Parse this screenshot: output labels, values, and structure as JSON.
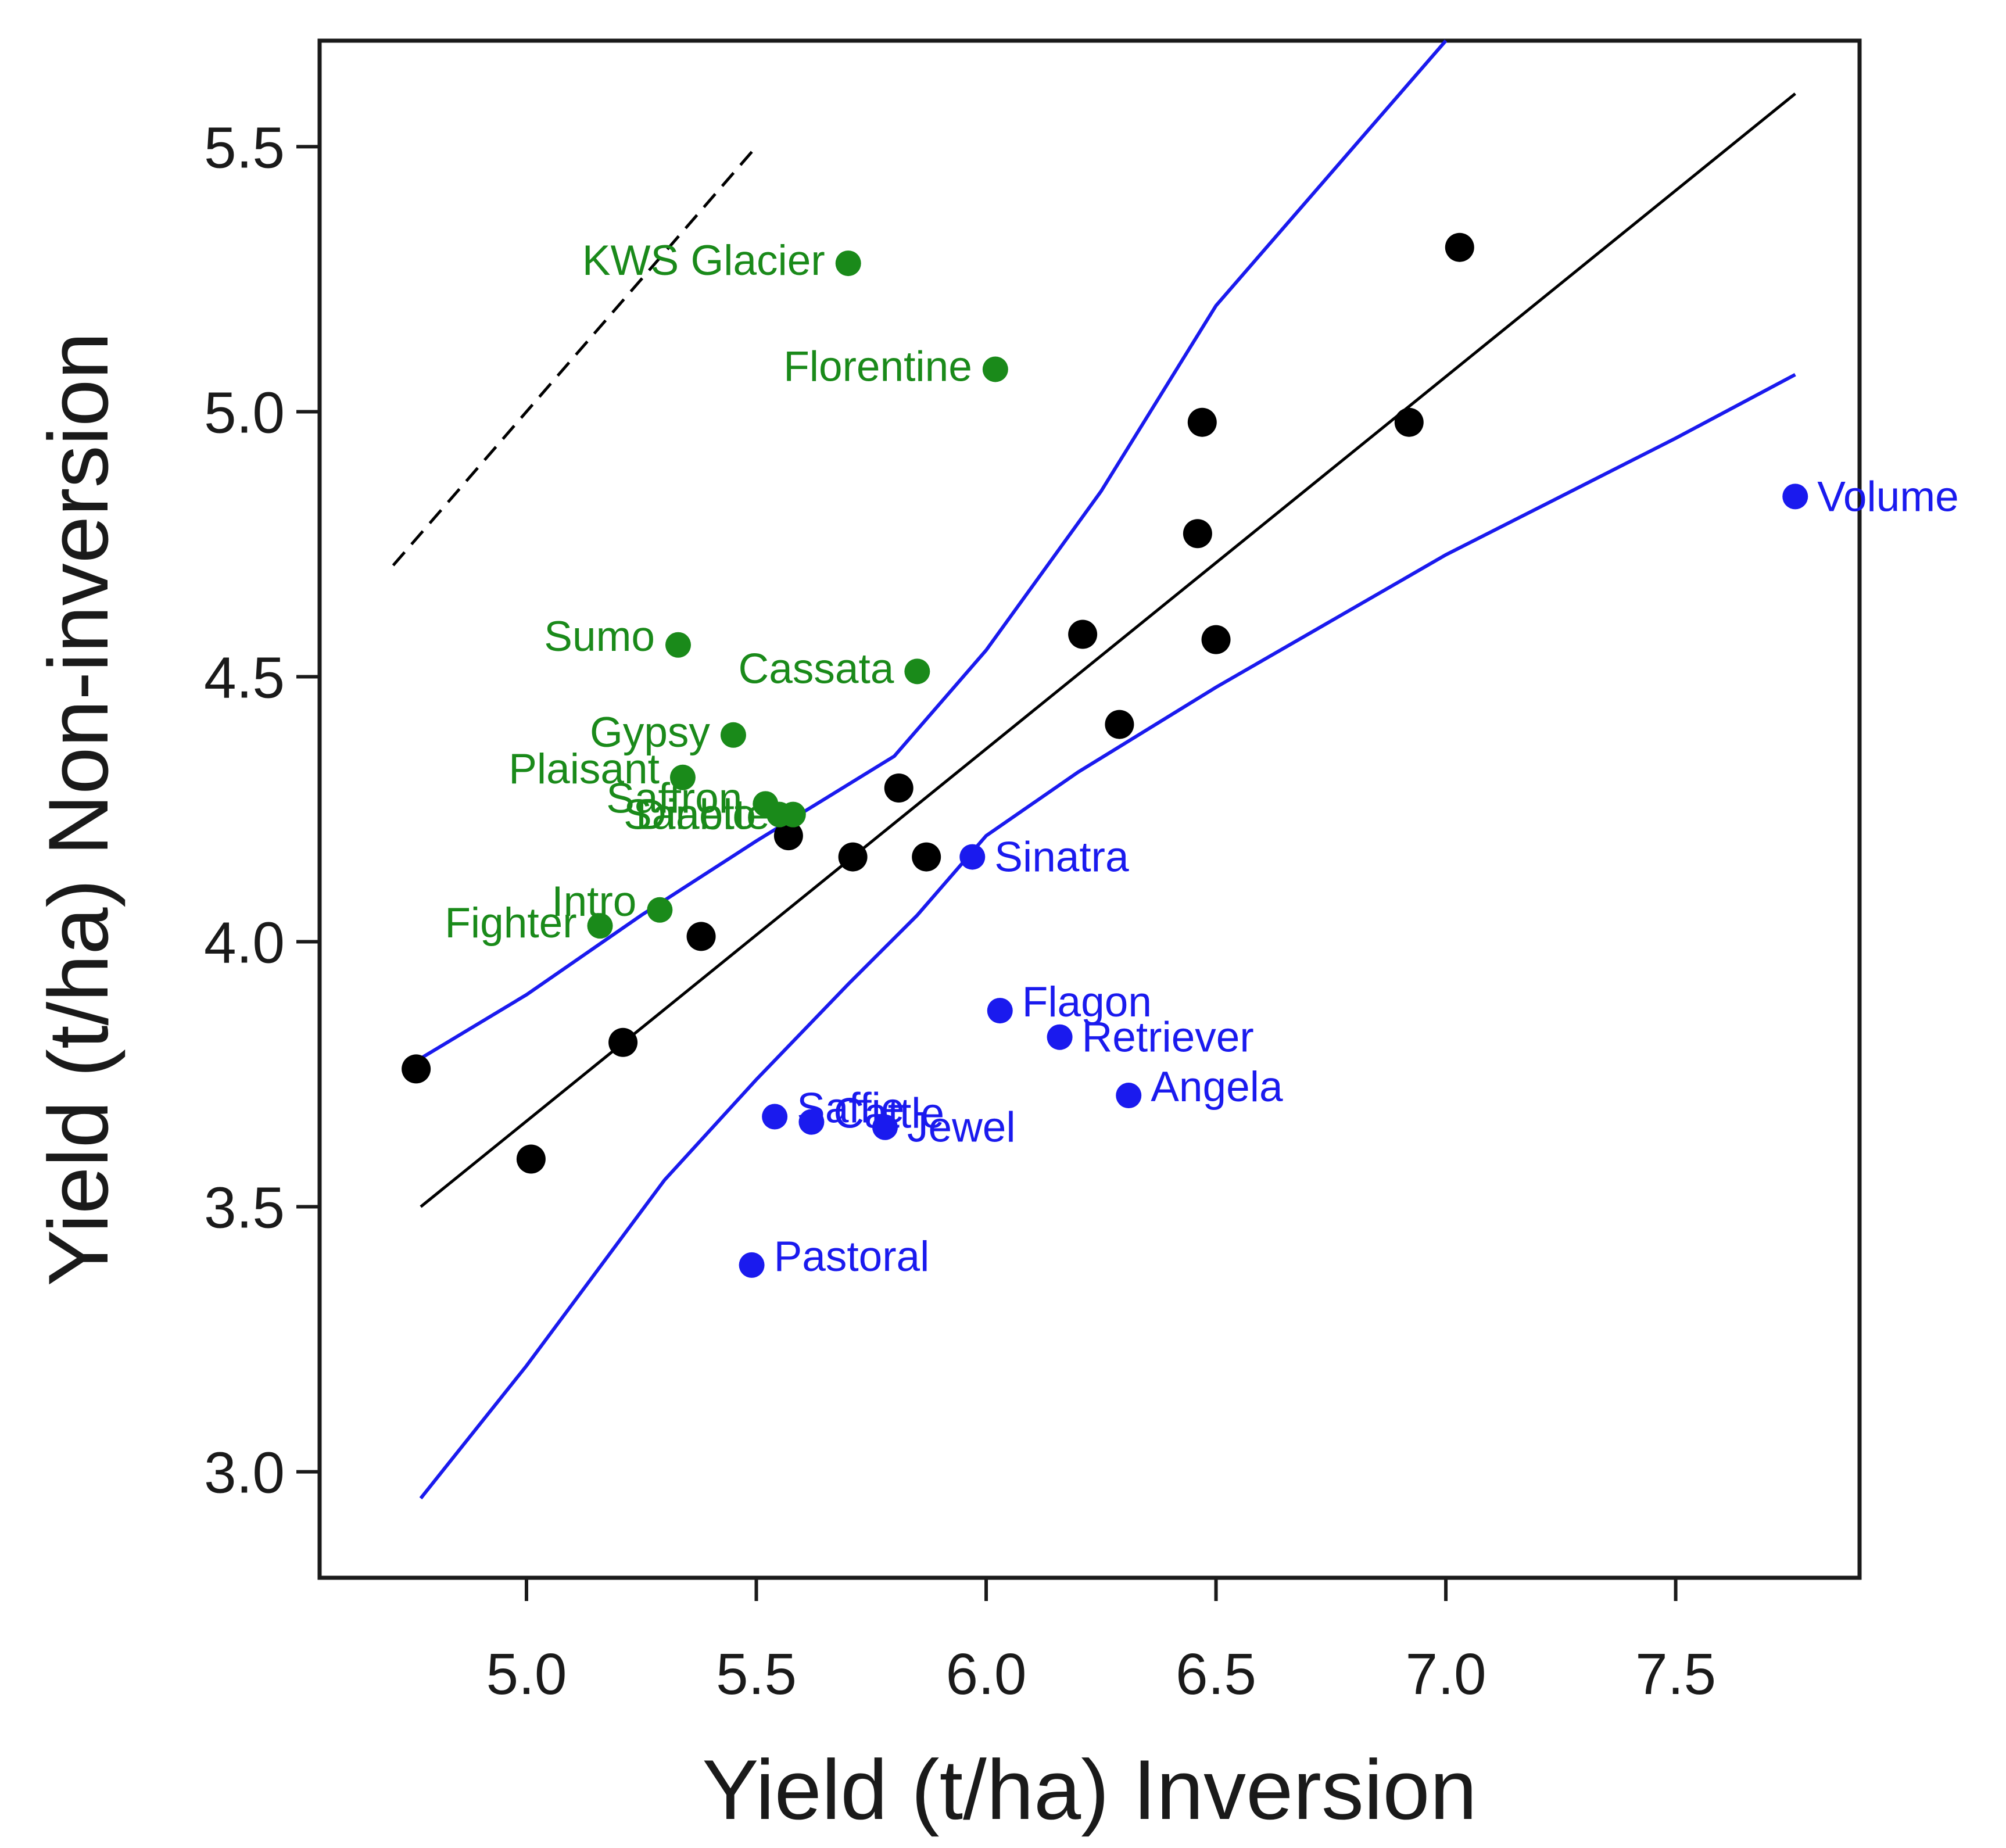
{
  "chart_data": {
    "type": "scatter",
    "title": "",
    "xlabel": "Yield (t/ha) Inversion",
    "ylabel": "Yield (t/ha) Non-inversion",
    "xlim": [
      4.55,
      7.9
    ],
    "ylim": [
      2.8,
      5.7
    ],
    "xticks": [
      {
        "value": 5.0,
        "label": "5.0"
      },
      {
        "value": 5.5,
        "label": "5.5"
      },
      {
        "value": 6.0,
        "label": "6.0"
      },
      {
        "value": 6.5,
        "label": "6.5"
      },
      {
        "value": 7.0,
        "label": "7.0"
      },
      {
        "value": 7.5,
        "label": "7.5"
      }
    ],
    "yticks": [
      {
        "value": 3.0,
        "label": "3.0"
      },
      {
        "value": 3.5,
        "label": "3.5"
      },
      {
        "value": 4.0,
        "label": "4.0"
      },
      {
        "value": 4.5,
        "label": "4.5"
      },
      {
        "value": 5.0,
        "label": "5.0"
      },
      {
        "value": 5.5,
        "label": "5.5"
      }
    ],
    "grid": false,
    "colors": {
      "unlabelled": "#000000",
      "above": "#1a8a1a",
      "below": "#1a1aee",
      "fit": "#000000",
      "band": "#1a1aee",
      "reference": "#000000"
    },
    "series": [
      {
        "name": "unlabelled",
        "color": "#000000",
        "points": [
          {
            "x": 4.76,
            "y": 3.76
          },
          {
            "x": 5.01,
            "y": 3.59
          },
          {
            "x": 5.21,
            "y": 3.81
          },
          {
            "x": 5.38,
            "y": 4.01
          },
          {
            "x": 5.57,
            "y": 4.2
          },
          {
            "x": 5.71,
            "y": 4.16
          },
          {
            "x": 5.81,
            "y": 4.29
          },
          {
            "x": 5.87,
            "y": 4.16
          },
          {
            "x": 6.21,
            "y": 4.58
          },
          {
            "x": 6.29,
            "y": 4.41
          },
          {
            "x": 6.46,
            "y": 4.77
          },
          {
            "x": 6.47,
            "y": 4.98
          },
          {
            "x": 6.5,
            "y": 4.57
          },
          {
            "x": 6.92,
            "y": 4.98
          },
          {
            "x": 7.03,
            "y": 5.31
          }
        ]
      },
      {
        "name": "above",
        "color": "#1a8a1a",
        "points": [
          {
            "x": 5.7,
            "y": 5.28,
            "label": "KWS Glacier"
          },
          {
            "x": 6.02,
            "y": 5.08,
            "label": "Florentine"
          },
          {
            "x": 5.33,
            "y": 4.56,
            "label": "Sumo"
          },
          {
            "x": 5.85,
            "y": 4.51,
            "label": "Cassata"
          },
          {
            "x": 5.45,
            "y": 4.39,
            "label": "Gypsy"
          },
          {
            "x": 5.34,
            "y": 4.31,
            "label": "Plaisant"
          },
          {
            "x": 5.52,
            "y": 4.26,
            "label": "Saffron"
          },
          {
            "x": 5.55,
            "y": 4.24,
            "label": "Diablo"
          },
          {
            "x": 5.58,
            "y": 4.24,
            "label": "Sanette"
          },
          {
            "x": 5.29,
            "y": 4.06,
            "label": "Intro"
          },
          {
            "x": 5.16,
            "y": 4.03,
            "label": "Fighter"
          }
        ]
      },
      {
        "name": "below",
        "color": "#1a1aee",
        "points": [
          {
            "x": 7.76,
            "y": 4.84,
            "label": "Volume"
          },
          {
            "x": 5.97,
            "y": 4.16,
            "label": "Sinatra"
          },
          {
            "x": 6.03,
            "y": 3.87,
            "label": "Flagon"
          },
          {
            "x": 6.16,
            "y": 3.82,
            "label": "Retriever"
          },
          {
            "x": 6.31,
            "y": 3.71,
            "label": "Angela"
          },
          {
            "x": 5.54,
            "y": 3.67,
            "label": "Saffie"
          },
          {
            "x": 5.62,
            "y": 3.66,
            "label": "Cattle"
          },
          {
            "x": 5.78,
            "y": 3.65,
            "label": "Jewel"
          },
          {
            "x": 5.49,
            "y": 3.39,
            "label": "Pastoral"
          }
        ]
      }
    ],
    "fit_line": {
      "x": [
        4.77,
        7.76
      ],
      "y": [
        3.5,
        5.6
      ]
    },
    "upper_band": {
      "x": [
        4.77,
        5.0,
        5.25,
        5.5,
        5.65,
        5.8,
        6.0,
        6.25,
        6.5,
        6.75,
        7.0
      ],
      "y": [
        3.78,
        3.9,
        4.05,
        4.19,
        4.27,
        4.35,
        4.55,
        4.85,
        5.2,
        5.45,
        5.7
      ]
    },
    "lower_band": {
      "x": [
        4.77,
        5.0,
        5.3,
        5.5,
        5.7,
        5.85,
        6.0,
        6.2,
        6.5,
        7.0,
        7.5,
        7.76
      ],
      "y": [
        2.95,
        3.2,
        3.55,
        3.74,
        3.92,
        4.05,
        4.2,
        4.32,
        4.48,
        4.73,
        4.95,
        5.07
      ]
    },
    "reference_line": {
      "x": [
        4.71,
        5.5
      ],
      "y": [
        4.71,
        5.5
      ],
      "style": "dashed"
    }
  }
}
